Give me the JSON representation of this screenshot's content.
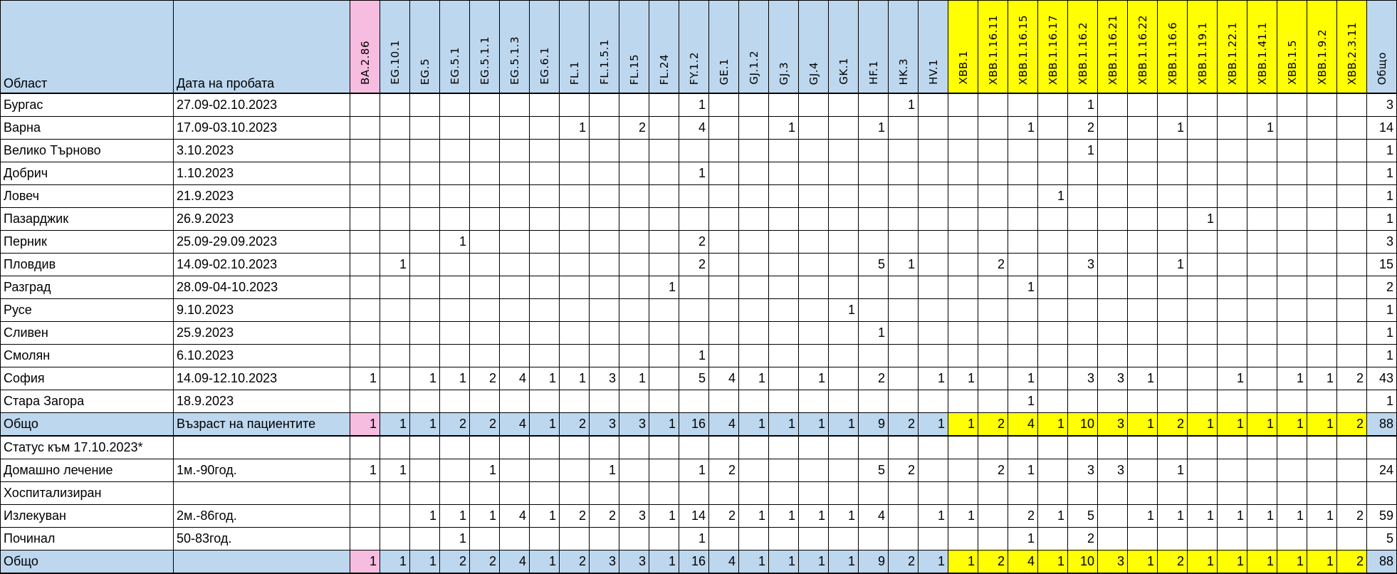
{
  "headers": {
    "region": "Област",
    "date": "Дата на пробата",
    "total": "Общо"
  },
  "lineages": [
    "BA.2.86",
    "EG.10.1",
    "EG.5",
    "EG.5.1",
    "EG.5.1.1",
    "EG.5.1.3",
    "EG.6.1",
    "FL.1",
    "FL.1.5.1",
    "FL.15",
    "FL.24",
    "FY.1.2",
    "GE.1",
    "GJ.1.2",
    "GJ.3",
    "GJ.4",
    "GK.1",
    "HF.1",
    "HK.3",
    "HV.1",
    "XBB.1",
    "XBB.1.16.11",
    "XBB.1.16.15",
    "XBB.1.16.17",
    "XBB.1.16.2",
    "XBB.1.16.21",
    "XBB.1.16.22",
    "XBB.1.16.6",
    "XBB.1.19.1",
    "XBB.1.22.1",
    "XBB.1.41.1",
    "XBB.1.5",
    "XBB.1.9.2",
    "XBB.2.3.11"
  ],
  "colors": {
    "header": "#bdd7ee",
    "ba_highlight": "#f7bde0",
    "xbb_highlight": "#ffff00"
  },
  "rows": [
    {
      "type": "data",
      "label": "Бургас",
      "date": "27.09-02.10.2023",
      "values": [
        "",
        "",
        "",
        "",
        "",
        "",
        "",
        "",
        "",
        "",
        "",
        1,
        "",
        "",
        "",
        "",
        "",
        "",
        1,
        "",
        "",
        "",
        "",
        "",
        1,
        "",
        "",
        "",
        "",
        "",
        "",
        "",
        "",
        ""
      ],
      "total": 3
    },
    {
      "type": "data",
      "label": "Варна",
      "date": "17.09-03.10.2023",
      "values": [
        "",
        "",
        "",
        "",
        "",
        "",
        "",
        1,
        "",
        2,
        "",
        4,
        "",
        "",
        1,
        "",
        "",
        1,
        "",
        "",
        "",
        "",
        1,
        "",
        2,
        "",
        "",
        1,
        "",
        "",
        1,
        "",
        "",
        ""
      ],
      "total": 14
    },
    {
      "type": "data",
      "label": "Велико Търново",
      "date": "3.10.2023",
      "values": [
        "",
        "",
        "",
        "",
        "",
        "",
        "",
        "",
        "",
        "",
        "",
        "",
        "",
        "",
        "",
        "",
        "",
        "",
        "",
        "",
        "",
        "",
        "",
        "",
        1,
        "",
        "",
        "",
        "",
        "",
        "",
        "",
        "",
        ""
      ],
      "total": 1
    },
    {
      "type": "data",
      "label": "Добрич",
      "date": "1.10.2023",
      "values": [
        "",
        "",
        "",
        "",
        "",
        "",
        "",
        "",
        "",
        "",
        "",
        1,
        "",
        "",
        "",
        "",
        "",
        "",
        "",
        "",
        "",
        "",
        "",
        "",
        "",
        "",
        "",
        "",
        "",
        "",
        "",
        "",
        "",
        ""
      ],
      "total": 1
    },
    {
      "type": "data",
      "label": "Ловеч",
      "date": "21.9.2023",
      "values": [
        "",
        "",
        "",
        "",
        "",
        "",
        "",
        "",
        "",
        "",
        "",
        "",
        "",
        "",
        "",
        "",
        "",
        "",
        "",
        "",
        "",
        "",
        "",
        1,
        "",
        "",
        "",
        "",
        "",
        "",
        "",
        "",
        "",
        ""
      ],
      "total": 1
    },
    {
      "type": "data",
      "label": "Пазарджик",
      "date": "26.9.2023",
      "values": [
        "",
        "",
        "",
        "",
        "",
        "",
        "",
        "",
        "",
        "",
        "",
        "",
        "",
        "",
        "",
        "",
        "",
        "",
        "",
        "",
        "",
        "",
        "",
        "",
        "",
        "",
        "",
        "",
        1,
        "",
        "",
        "",
        "",
        ""
      ],
      "total": 1
    },
    {
      "type": "data",
      "label": "Перник",
      "date": "25.09-29.09.2023",
      "values": [
        "",
        "",
        "",
        1,
        "",
        "",
        "",
        "",
        "",
        "",
        "",
        2,
        "",
        "",
        "",
        "",
        "",
        "",
        "",
        "",
        "",
        "",
        "",
        "",
        "",
        "",
        "",
        "",
        "",
        "",
        "",
        "",
        "",
        ""
      ],
      "total": 3
    },
    {
      "type": "data",
      "label": "Пловдив",
      "date": "14.09-02.10.2023",
      "values": [
        "",
        1,
        "",
        "",
        "",
        "",
        "",
        "",
        "",
        "",
        "",
        2,
        "",
        "",
        "",
        "",
        "",
        5,
        1,
        "",
        "",
        2,
        "",
        "",
        3,
        "",
        "",
        1,
        "",
        "",
        "",
        "",
        "",
        ""
      ],
      "total": 15
    },
    {
      "type": "data",
      "label": "Разград",
      "date": "28.09-04-10.2023",
      "values": [
        "",
        "",
        "",
        "",
        "",
        "",
        "",
        "",
        "",
        "",
        1,
        "",
        "",
        "",
        "",
        "",
        "",
        "",
        "",
        "",
        "",
        "",
        1,
        "",
        "",
        "",
        "",
        "",
        "",
        "",
        "",
        "",
        "",
        ""
      ],
      "total": 2
    },
    {
      "type": "data",
      "label": "Русе",
      "date": "9.10.2023",
      "values": [
        "",
        "",
        "",
        "",
        "",
        "",
        "",
        "",
        "",
        "",
        "",
        "",
        "",
        "",
        "",
        "",
        1,
        "",
        "",
        "",
        "",
        "",
        "",
        "",
        "",
        "",
        "",
        "",
        "",
        "",
        "",
        "",
        "",
        ""
      ],
      "total": 1
    },
    {
      "type": "data",
      "label": "Сливен",
      "date": "25.9.2023",
      "values": [
        "",
        "",
        "",
        "",
        "",
        "",
        "",
        "",
        "",
        "",
        "",
        "",
        "",
        "",
        "",
        "",
        "",
        1,
        "",
        "",
        "",
        "",
        "",
        "",
        "",
        "",
        "",
        "",
        "",
        "",
        "",
        "",
        "",
        ""
      ],
      "total": 1
    },
    {
      "type": "data",
      "label": "Смолян",
      "date": "6.10.2023",
      "values": [
        "",
        "",
        "",
        "",
        "",
        "",
        "",
        "",
        "",
        "",
        "",
        1,
        "",
        "",
        "",
        "",
        "",
        "",
        "",
        "",
        "",
        "",
        "",
        "",
        "",
        "",
        "",
        "",
        "",
        "",
        "",
        "",
        "",
        ""
      ],
      "total": 1
    },
    {
      "type": "data",
      "label": "София",
      "date": "14.09-12.10.2023",
      "values": [
        1,
        "",
        1,
        1,
        2,
        4,
        1,
        1,
        3,
        1,
        "",
        5,
        4,
        1,
        "",
        1,
        "",
        2,
        "",
        1,
        1,
        "",
        1,
        "",
        3,
        3,
        1,
        "",
        "",
        1,
        "",
        1,
        1,
        2
      ],
      "total": 43
    },
    {
      "type": "data",
      "label": "Стара Загора",
      "date": "18.9.2023",
      "values": [
        "",
        "",
        "",
        "",
        "",
        "",
        "",
        "",
        "",
        "",
        "",
        "",
        "",
        "",
        "",
        "",
        "",
        "",
        "",
        "",
        "",
        "",
        1,
        "",
        "",
        "",
        "",
        "",
        "",
        "",
        "",
        "",
        "",
        ""
      ],
      "total": 1
    },
    {
      "type": "total",
      "label": "Общо",
      "date": "Възраст на пациентите",
      "values": [
        1,
        1,
        1,
        2,
        2,
        4,
        1,
        2,
        3,
        3,
        1,
        16,
        4,
        1,
        1,
        1,
        1,
        9,
        2,
        1,
        1,
        2,
        4,
        1,
        10,
        3,
        1,
        2,
        1,
        1,
        1,
        1,
        1,
        2
      ],
      "total": 88
    },
    {
      "type": "data",
      "label": "Статус към 17.10.2023*",
      "date": "",
      "values": [
        "",
        "",
        "",
        "",
        "",
        "",
        "",
        "",
        "",
        "",
        "",
        "",
        "",
        "",
        "",
        "",
        "",
        "",
        "",
        "",
        "",
        "",
        "",
        "",
        "",
        "",
        "",
        "",
        "",
        "",
        "",
        "",
        "",
        ""
      ],
      "total": ""
    },
    {
      "type": "data",
      "label": "Домашно лечение",
      "date": "1м.-90год.",
      "values": [
        1,
        1,
        "",
        "",
        1,
        "",
        "",
        "",
        1,
        "",
        "",
        1,
        2,
        "",
        "",
        "",
        "",
        5,
        2,
        "",
        "",
        2,
        1,
        "",
        3,
        3,
        "",
        1,
        "",
        "",
        "",
        "",
        "",
        ""
      ],
      "total": 24
    },
    {
      "type": "data",
      "label": "Хоспитализиран",
      "date": "",
      "values": [
        "",
        "",
        "",
        "",
        "",
        "",
        "",
        "",
        "",
        "",
        "",
        "",
        "",
        "",
        "",
        "",
        "",
        "",
        "",
        "",
        "",
        "",
        "",
        "",
        "",
        "",
        "",
        "",
        "",
        "",
        "",
        "",
        "",
        ""
      ],
      "total": ""
    },
    {
      "type": "data",
      "label": "Излекуван",
      "date": "2м.-86год.",
      "values": [
        "",
        "",
        1,
        1,
        1,
        4,
        1,
        2,
        2,
        3,
        1,
        14,
        2,
        1,
        1,
        1,
        1,
        4,
        "",
        1,
        1,
        "",
        2,
        1,
        5,
        "",
        1,
        1,
        1,
        1,
        1,
        1,
        1,
        2
      ],
      "total": 59
    },
    {
      "type": "data",
      "label": "Починал",
      "date": "50-83год.",
      "values": [
        "",
        "",
        "",
        1,
        "",
        "",
        "",
        "",
        "",
        "",
        "",
        1,
        "",
        "",
        "",
        "",
        "",
        "",
        "",
        "",
        "",
        "",
        1,
        "",
        2,
        "",
        "",
        "",
        "",
        "",
        "",
        "",
        "",
        ""
      ],
      "total": 5
    },
    {
      "type": "total",
      "label": "Общо",
      "date": "",
      "values": [
        1,
        1,
        1,
        2,
        2,
        4,
        1,
        2,
        3,
        3,
        1,
        16,
        4,
        1,
        1,
        1,
        1,
        9,
        2,
        1,
        1,
        2,
        4,
        1,
        10,
        3,
        1,
        2,
        1,
        1,
        1,
        1,
        1,
        2
      ],
      "total": 88
    }
  ]
}
